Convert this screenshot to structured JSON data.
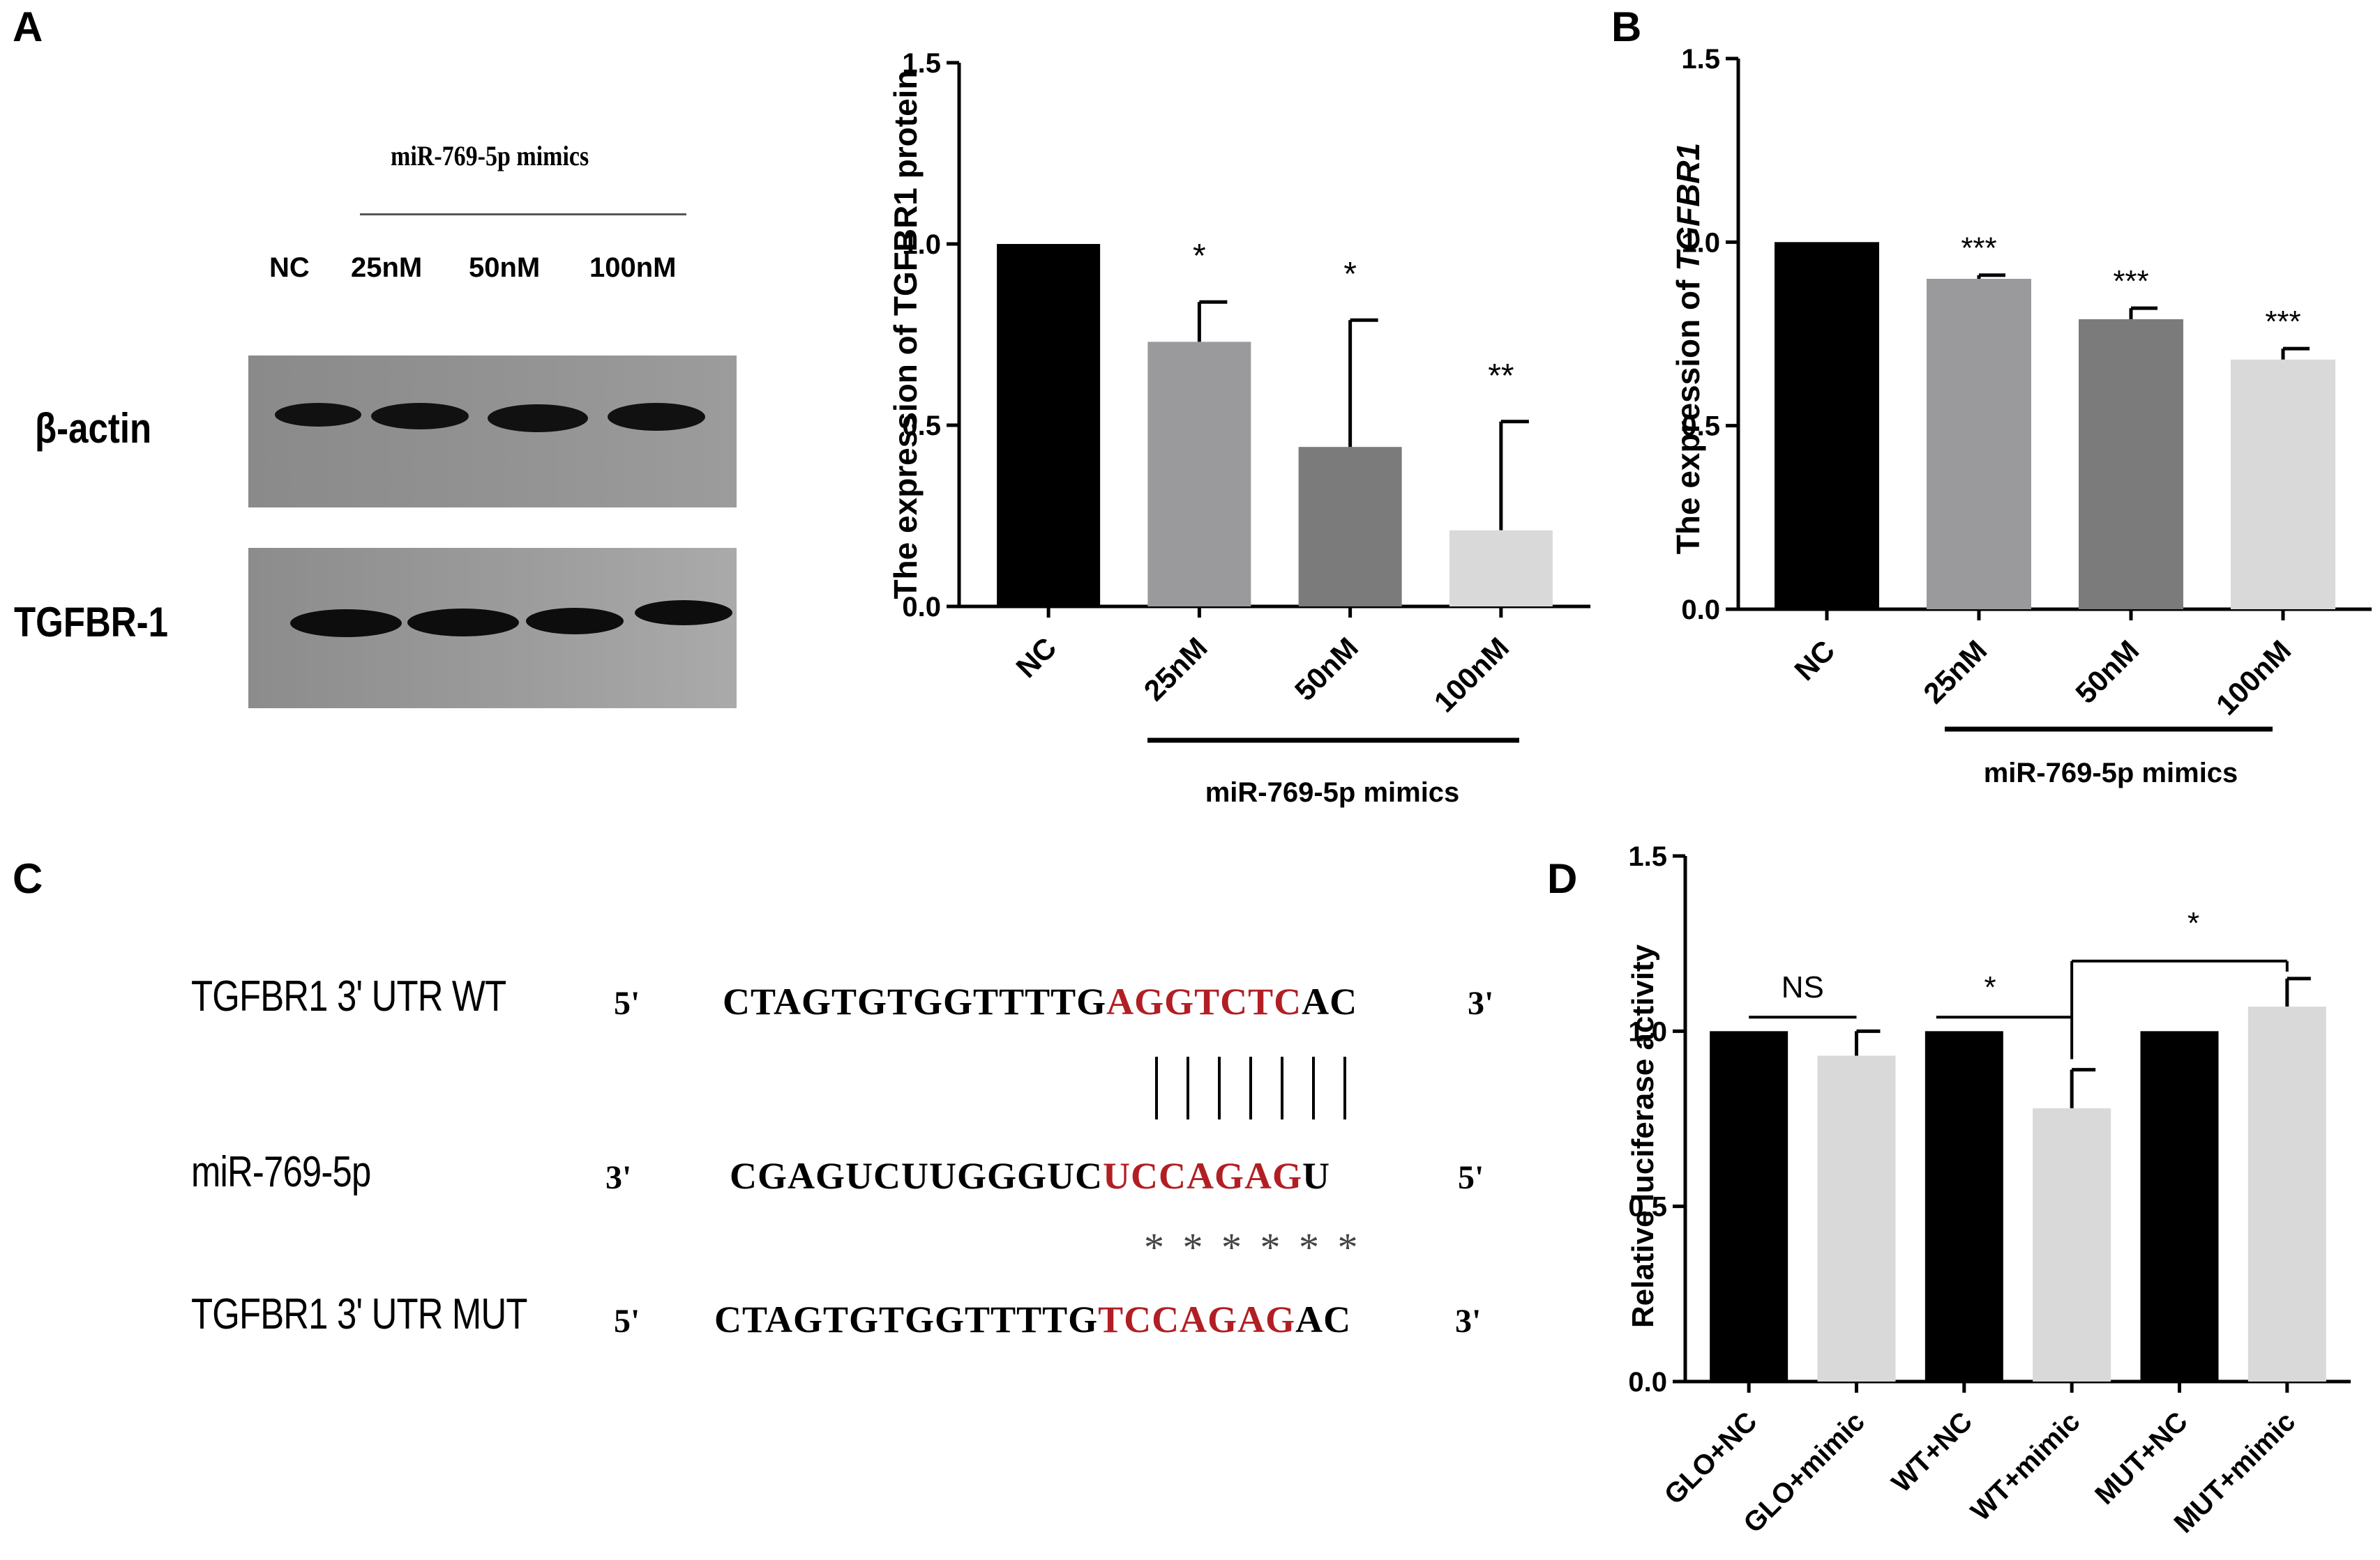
{
  "panels": {
    "A_letter": "A",
    "B_letter": "B",
    "C_letter": "C",
    "D_letter": "D"
  },
  "blot": {
    "group_label": "miR-769-5p  mimics",
    "lanes": [
      "NC",
      "25nM",
      "50nM",
      "100nM"
    ],
    "rows": [
      "β-actin",
      "TGFBR-1"
    ]
  },
  "sequences": {
    "wt_name": "TGFBR1 3' UTR WT",
    "wt_5": "5'",
    "wt_pre": "CTAGTGTGGTTTTG",
    "wt_red": "AGGTCTC",
    "wt_post": "AC",
    "wt_3": "3'",
    "pairing": "| | | | | | |",
    "mir_name": "miR-769-5p",
    "mir_3": "3'",
    "mir_pre": "CGAGUCUUGGGUC",
    "mir_red": "UCCAGAG",
    "mir_post": "U",
    "mir_5": "5'",
    "mut_marks": "* * * * * *",
    "mut_name": "TGFBR1 3' UTR MUT",
    "mut_5": "5'",
    "mut_pre": "CTAGTGTGGTTTTG",
    "mut_red": "TCCAGAG",
    "mut_post": "AC",
    "mut_3": "3'"
  },
  "chart_data": [
    {
      "id": "A",
      "type": "bar",
      "ylabel": "The expression of TGFBR1 protein",
      "ylim": [
        0,
        1.5
      ],
      "yticks": [
        "0.0",
        "0.5",
        "1.0",
        "1.5"
      ],
      "categories": [
        "NC",
        "25nM",
        "50nM",
        "100nM"
      ],
      "values": [
        1.0,
        0.73,
        0.44,
        0.21
      ],
      "errors": [
        0,
        0.11,
        0.35,
        0.3
      ],
      "colors": [
        "#000000",
        "#9a9a9c",
        "#7b7b7b",
        "#d9d9d9"
      ],
      "significance": [
        "",
        "*",
        "*",
        "**"
      ],
      "group_label": "miR-769-5p mimics"
    },
    {
      "id": "B",
      "type": "bar",
      "ylabel_prefix": "The expression of ",
      "ylabel_italic": "TGFBR1",
      "ylim": [
        0,
        1.5
      ],
      "yticks": [
        "0.0",
        "0.5",
        "1.0",
        "1.5"
      ],
      "categories": [
        "NC",
        "25nM",
        "50nM",
        "100nM"
      ],
      "values": [
        1.0,
        0.9,
        0.79,
        0.68
      ],
      "errors": [
        0,
        0.01,
        0.03,
        0.03
      ],
      "colors": [
        "#000000",
        "#9a9a9c",
        "#7b7b7b",
        "#d9d9d9"
      ],
      "significance": [
        "",
        "***",
        "***",
        "***"
      ],
      "group_label": "miR-769-5p mimics"
    },
    {
      "id": "D",
      "type": "bar",
      "ylabel": "Relative luciferase activity",
      "ylim": [
        0,
        1.5
      ],
      "yticks": [
        "0.0",
        "0.5",
        "1.0",
        "1.5"
      ],
      "categories": [
        "GLO+NC",
        "GLO+mimic",
        "WT+NC",
        "WT+mimic",
        "MUT+NC",
        "MUT+mimic"
      ],
      "values": [
        1.0,
        0.93,
        1.0,
        0.78,
        1.0,
        1.07
      ],
      "errors": [
        0,
        0.07,
        0,
        0.11,
        0,
        0.08
      ],
      "colors": [
        "#000000",
        "#d9d9d9",
        "#000000",
        "#d9d9d9",
        "#000000",
        "#d9d9d9"
      ],
      "brackets": [
        {
          "label": "NS"
        },
        {
          "label": "*"
        },
        {
          "label": "*"
        }
      ]
    }
  ]
}
